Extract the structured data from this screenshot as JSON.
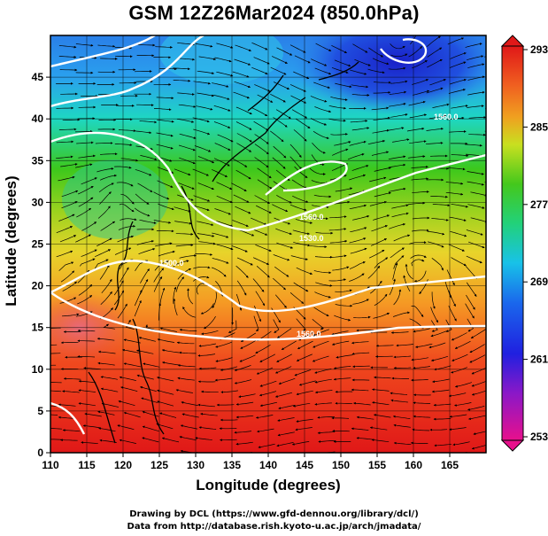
{
  "title": "GSM 12Z26Mar2024 (850.0hPa)",
  "xlabel": "Longitude (degrees)",
  "ylabel": "Latitude  (degrees)",
  "credits": [
    "Drawing by DCL (https://www.gfd-dennou.org/library/dcl/)",
    "Data from http://database.rish.kyoto-u.ac.jp/arch/jmadata/"
  ],
  "chart_data": {
    "type": "heatmap",
    "title": "GSM 12Z26Mar2024 (850.0hPa)",
    "xlabel": "Longitude (degrees)",
    "ylabel": "Latitude  (degrees)",
    "xlim": [
      110,
      170
    ],
    "ylim": [
      0,
      50
    ],
    "x_ticks": [
      110,
      115,
      120,
      125,
      130,
      135,
      140,
      145,
      150,
      155,
      160,
      165
    ],
    "y_ticks": [
      0,
      5,
      10,
      15,
      20,
      25,
      30,
      35,
      40,
      45
    ],
    "colorbar": {
      "range": [
        253,
        293
      ],
      "ticks": [
        253,
        261,
        269,
        277,
        285,
        293
      ],
      "colors": [
        "#e8108c",
        "#6a1fd6",
        "#1030e0",
        "#18a6ea",
        "#22d17a",
        "#44c81c",
        "#c8e020",
        "#f0a020",
        "#f04a1e",
        "#e01818"
      ]
    },
    "contour_labels": [
      "1560.0",
      "1560.0",
      "1530.0",
      "1500.0",
      "1560.0"
    ],
    "grid": true
  }
}
